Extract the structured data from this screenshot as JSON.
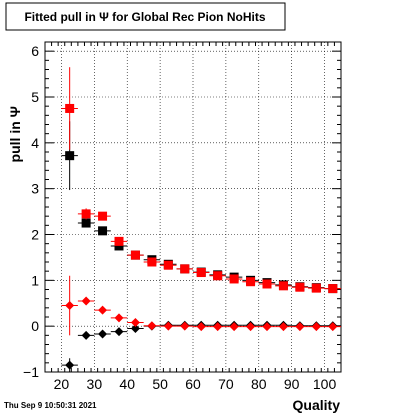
{
  "chart_data": {
    "type": "scatter",
    "title": "Fitted pull in  Ψ  for Global Rec Pion NoHits",
    "xlabel": "Quality",
    "ylabel": "pull in  Ψ",
    "timestamp": "Thu Sep  9 10:50:31 2021",
    "xlim": [
      15,
      105
    ],
    "ylim": [
      -1,
      6.2
    ],
    "x_ticks": [
      20,
      30,
      40,
      50,
      60,
      70,
      80,
      90,
      100
    ],
    "y_ticks": [
      -1,
      0,
      1,
      2,
      3,
      4,
      5,
      6
    ],
    "grid": true,
    "series": [
      {
        "marker": "square",
        "color": "#000000",
        "x": [
          22.5,
          27.5,
          32.5,
          37.5,
          42.5,
          47.5,
          52.5,
          57.5,
          62.5,
          67.5,
          72.5,
          77.5,
          82.5,
          87.5,
          92.5,
          97.5,
          102.5
        ],
        "y": [
          3.72,
          2.25,
          2.08,
          1.75,
          1.55,
          1.45,
          1.35,
          1.25,
          1.18,
          1.12,
          1.07,
          1.0,
          0.95,
          0.9,
          0.86,
          0.84,
          0.82
        ],
        "err": [
          0.75,
          0.08,
          0.06,
          0.04,
          0.03,
          0.03,
          0.03,
          0.03,
          0.02,
          0.02,
          0.02,
          0.02,
          0.02,
          0.02,
          0.02,
          0.02,
          0.02
        ]
      },
      {
        "marker": "square",
        "color": "#ff0000",
        "x": [
          22.5,
          27.5,
          32.5,
          37.5,
          42.5,
          47.5,
          52.5,
          57.5,
          62.5,
          67.5,
          72.5,
          77.5,
          82.5,
          87.5,
          92.5,
          97.5,
          102.5
        ],
        "y": [
          4.75,
          2.45,
          2.4,
          1.85,
          1.55,
          1.4,
          1.33,
          1.25,
          1.17,
          1.1,
          1.03,
          0.97,
          0.92,
          0.88,
          0.85,
          0.83,
          0.82
        ],
        "err": [
          0.9,
          0.12,
          0.07,
          0.05,
          0.04,
          0.04,
          0.03,
          0.03,
          0.03,
          0.03,
          0.02,
          0.02,
          0.02,
          0.02,
          0.02,
          0.02,
          0.02
        ]
      },
      {
        "marker": "diamond",
        "color": "#000000",
        "x": [
          22.5,
          27.5,
          32.5,
          37.5,
          42.5,
          47.5,
          52.5,
          57.5,
          62.5,
          67.5,
          72.5,
          77.5,
          82.5,
          87.5,
          92.5,
          97.5,
          102.5
        ],
        "y": [
          -0.85,
          -0.2,
          -0.17,
          -0.12,
          -0.05,
          0.0,
          0.02,
          0.02,
          0.02,
          0.02,
          0.02,
          0.02,
          0.02,
          0.02,
          0.01,
          0.01,
          0.01
        ],
        "err": [
          0.15,
          0.04,
          0.03,
          0.03,
          0.02,
          0.02,
          0.02,
          0.02,
          0.02,
          0.02,
          0.02,
          0.02,
          0.02,
          0.02,
          0.02,
          0.02,
          0.02
        ]
      },
      {
        "marker": "diamond",
        "color": "#ff0000",
        "x": [
          22.5,
          27.5,
          32.5,
          37.5,
          42.5,
          47.5,
          52.5,
          57.5,
          62.5,
          67.5,
          72.5,
          77.5,
          82.5,
          87.5,
          92.5,
          97.5,
          102.5
        ],
        "y": [
          0.45,
          0.55,
          0.35,
          0.18,
          0.08,
          0.01,
          0.0,
          0.0,
          -0.01,
          -0.01,
          -0.01,
          -0.01,
          -0.01,
          -0.01,
          -0.01,
          -0.01,
          -0.01
        ],
        "err": [
          0.65,
          0.05,
          0.04,
          0.03,
          0.02,
          0.02,
          0.02,
          0.02,
          0.02,
          0.02,
          0.02,
          0.02,
          0.02,
          0.02,
          0.02,
          0.02,
          0.02
        ]
      }
    ]
  }
}
